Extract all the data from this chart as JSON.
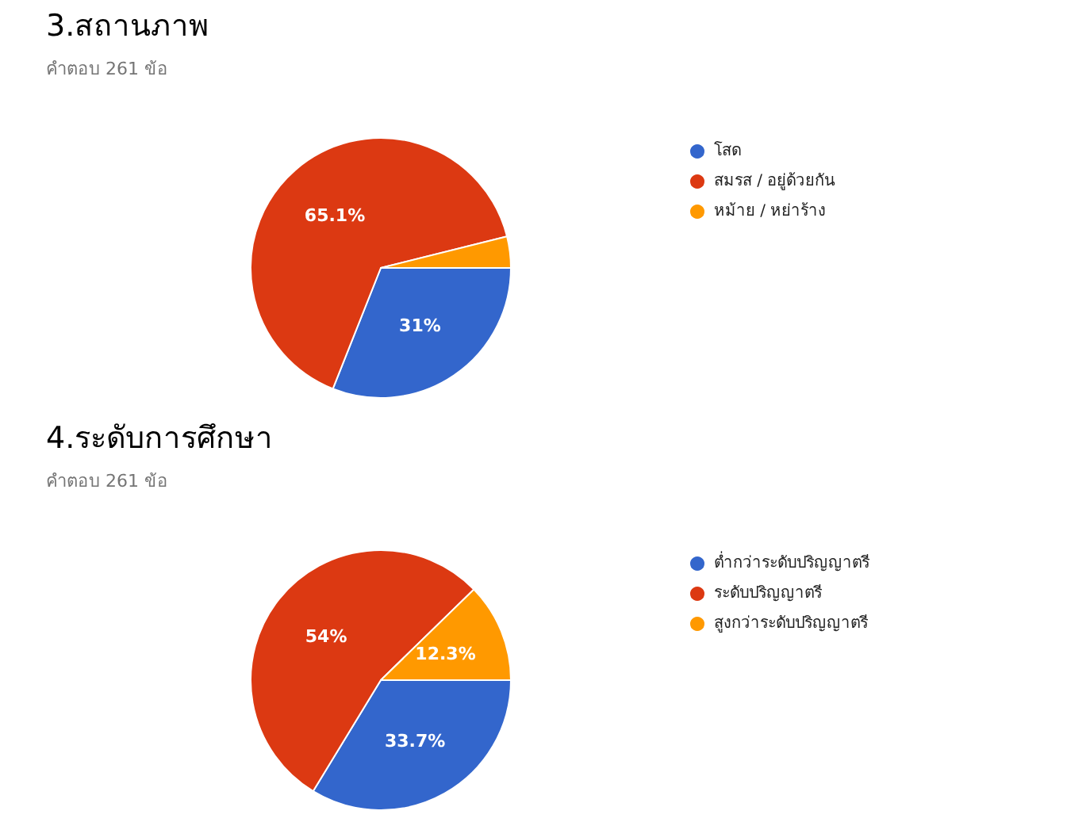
{
  "chart_data": [
    {
      "type": "pie",
      "title": "3.สถานภาพ",
      "subtitle": "คำตอบ 261 ข้อ",
      "categories": [
        "โสด",
        "สมรส / อยู่ด้วยกัน",
        "หม้าย / หย่าร้าง"
      ],
      "values": [
        31,
        65.1,
        3.9
      ],
      "colors": [
        "#3366cc",
        "#dc3912",
        "#ff9900"
      ],
      "value_labels": [
        "31%",
        "65.1%",
        null
      ],
      "legend": "right"
    },
    {
      "type": "pie",
      "title": "4.ระดับการศึกษา",
      "subtitle": "คำตอบ 261 ข้อ",
      "categories": [
        "ต่ำกว่าระดับปริญญาตรี",
        "ระดับปริญญาตรี",
        "สูงกว่าระดับปริญญาตรี"
      ],
      "values": [
        33.7,
        54,
        12.3
      ],
      "colors": [
        "#3366cc",
        "#dc3912",
        "#ff9900"
      ],
      "value_labels": [
        "33.7%",
        "54%",
        "12.3%"
      ],
      "legend": "right"
    }
  ]
}
